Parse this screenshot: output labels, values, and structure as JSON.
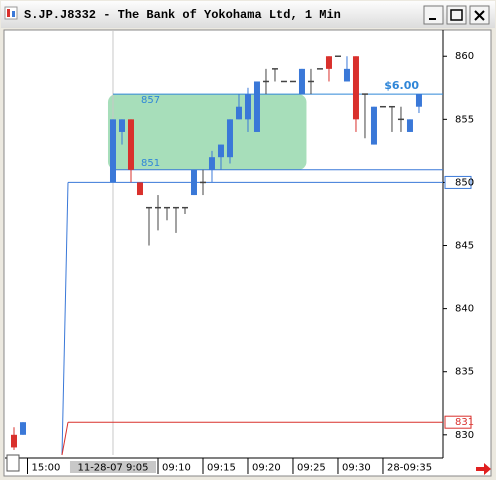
{
  "window": {
    "title": "S.JP.J8332 - The Bank of Yokohama Ltd, 1 Min"
  },
  "chart_data": {
    "type": "candlestick",
    "x": [
      -11,
      -10,
      0,
      1,
      2,
      3,
      4,
      5,
      6,
      7,
      8,
      9,
      10,
      11,
      12,
      13,
      14,
      15,
      16,
      17,
      18,
      19,
      20,
      21,
      22,
      23,
      24,
      25,
      26,
      27,
      28,
      29,
      30,
      31,
      32,
      33,
      34
    ],
    "open": [
      830,
      830,
      850,
      854,
      855,
      850,
      848,
      848,
      848,
      848,
      848,
      849,
      850,
      851,
      852,
      852,
      855,
      855,
      854,
      858,
      859,
      858,
      858,
      857,
      858,
      859,
      860,
      860,
      858,
      860,
      857,
      853,
      856,
      856,
      855,
      854,
      856
    ],
    "high": [
      830.6,
      831,
      855,
      855,
      855,
      850,
      848,
      849,
      848,
      848,
      848,
      851,
      851,
      852.5,
      853,
      855,
      857,
      857.5,
      858,
      859,
      859,
      858,
      858,
      859,
      859,
      859,
      860,
      860,
      860,
      860,
      857,
      856,
      856,
      856,
      856,
      855,
      857
    ],
    "low": [
      828.8,
      830,
      850,
      853,
      850,
      849,
      845,
      846.2,
      847,
      846,
      847.5,
      849,
      849,
      850,
      851,
      851.5,
      855,
      854,
      854,
      857,
      858,
      858,
      858,
      857,
      857,
      859,
      858,
      860,
      858,
      854,
      853.5,
      853,
      856,
      854,
      854,
      854,
      855.5
    ],
    "close": [
      829,
      831,
      855,
      855,
      851,
      849,
      848,
      848,
      848,
      848,
      848,
      851,
      850,
      852,
      853,
      855,
      856,
      857,
      858,
      858,
      859,
      858,
      858,
      859,
      858,
      859,
      859,
      860,
      859,
      855,
      857,
      856,
      856,
      856,
      855,
      855,
      857
    ],
    "up_color": "#3a78d8",
    "down_color": "#d9302c",
    "flat_color": "#444444",
    "xlim": [
      -12,
      36.67
    ],
    "ylim": [
      828.4,
      862
    ],
    "yticks": [
      860,
      855,
      850,
      845,
      840,
      835,
      830
    ],
    "xticks": [
      {
        "value": -9.5,
        "label": "15:00"
      },
      {
        "value": 5,
        "label": "09:10"
      },
      {
        "value": 10,
        "label": "09:15"
      },
      {
        "value": 15,
        "label": "09:20"
      },
      {
        "value": 20,
        "label": "09:25"
      },
      {
        "value": 25,
        "label": "09:30"
      },
      {
        "value": 30,
        "label": "28-09:35"
      }
    ],
    "cursor": {
      "value": 0,
      "label": "11-28-07  9:05"
    },
    "zone": {
      "top": 857,
      "bottom": 851,
      "start": 0,
      "end": 21.5,
      "color": "#98d8ae"
    },
    "target": {
      "value": 857,
      "start": 0,
      "label": "$6.00",
      "color": "#2f86d8"
    },
    "lines": [
      {
        "value": 851,
        "start": 0,
        "color": "#3a78d8",
        "axis_label": false
      },
      {
        "value": 850,
        "start": -5,
        "color": "#3a78d8",
        "axis_label": true
      },
      {
        "value": 831,
        "start": -5,
        "color": "#d9302c",
        "axis_label": true
      }
    ]
  }
}
